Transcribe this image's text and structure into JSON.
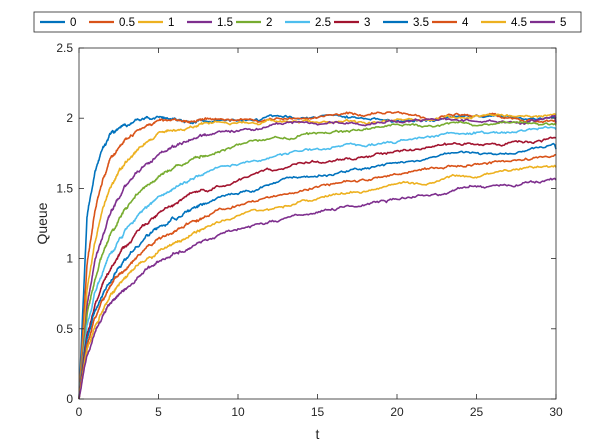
{
  "chart_data": {
    "type": "line",
    "title": "",
    "xlabel": "t",
    "ylabel": "Queue",
    "xlim": [
      0,
      30
    ],
    "ylim": [
      0,
      2.5
    ],
    "xticks": [
      "0",
      "5",
      "10",
      "15",
      "20",
      "25",
      "30"
    ],
    "yticks": [
      "0",
      "0.5",
      "1",
      "1.5",
      "2",
      "2.5"
    ],
    "grid": false,
    "legend_position": "top",
    "x": [
      0,
      0.5,
      1,
      1.5,
      2,
      2.5,
      3,
      4,
      5,
      6,
      7,
      8,
      10,
      12,
      14,
      16,
      18,
      20,
      22,
      24,
      26,
      28,
      30
    ],
    "series": [
      {
        "name": "0",
        "color": "#0072BD",
        "values": [
          0,
          1.3,
          1.62,
          1.8,
          1.88,
          1.93,
          1.96,
          1.98,
          1.99,
          2.0,
          1.98,
          2.0,
          1.99,
          2.0,
          2.0,
          2.01,
          2.0,
          1.98,
          2.0,
          2.01,
          2.02,
          1.99,
          2.0
        ]
      },
      {
        "name": "0.5",
        "color": "#D95319",
        "values": [
          0,
          0.95,
          1.35,
          1.58,
          1.72,
          1.8,
          1.86,
          1.93,
          1.97,
          1.98,
          1.99,
          2.0,
          1.98,
          1.97,
          1.99,
          2.01,
          2.03,
          2.04,
          1.99,
          2.01,
          2.02,
          1.96,
          1.96
        ]
      },
      {
        "name": "1",
        "color": "#EDB120",
        "values": [
          0,
          0.78,
          1.12,
          1.36,
          1.52,
          1.62,
          1.7,
          1.81,
          1.88,
          1.92,
          1.94,
          1.96,
          1.97,
          1.99,
          1.98,
          1.98,
          1.97,
          1.99,
          1.98,
          2.0,
          2.03,
          2.02,
          2.02
        ]
      },
      {
        "name": "1.5",
        "color": "#7E2F8E",
        "values": [
          0,
          0.68,
          0.98,
          1.18,
          1.33,
          1.44,
          1.53,
          1.65,
          1.74,
          1.8,
          1.85,
          1.88,
          1.92,
          1.94,
          1.96,
          1.97,
          1.97,
          1.98,
          1.99,
          1.97,
          1.98,
          1.96,
          1.97
        ]
      },
      {
        "name": "2",
        "color": "#77AC30",
        "values": [
          0,
          0.6,
          0.86,
          1.04,
          1.17,
          1.28,
          1.37,
          1.49,
          1.58,
          1.65,
          1.7,
          1.74,
          1.8,
          1.84,
          1.87,
          1.9,
          1.92,
          1.94,
          1.95,
          1.96,
          1.96,
          1.95,
          1.95
        ]
      },
      {
        "name": "2.5",
        "color": "#4DBEEE",
        "values": [
          0,
          0.52,
          0.76,
          0.92,
          1.04,
          1.14,
          1.22,
          1.34,
          1.43,
          1.5,
          1.56,
          1.61,
          1.67,
          1.72,
          1.76,
          1.79,
          1.82,
          1.84,
          1.86,
          1.88,
          1.9,
          1.91,
          1.92
        ]
      },
      {
        "name": "3",
        "color": "#A2142F",
        "values": [
          0,
          0.46,
          0.68,
          0.83,
          0.94,
          1.03,
          1.11,
          1.23,
          1.32,
          1.39,
          1.45,
          1.5,
          1.57,
          1.62,
          1.66,
          1.7,
          1.73,
          1.76,
          1.79,
          1.81,
          1.83,
          1.84,
          1.86
        ]
      },
      {
        "name": "3.5",
        "color": "#0072BD",
        "values": [
          0,
          0.42,
          0.62,
          0.76,
          0.86,
          0.95,
          1.02,
          1.13,
          1.22,
          1.29,
          1.35,
          1.4,
          1.48,
          1.53,
          1.58,
          1.62,
          1.65,
          1.68,
          1.71,
          1.74,
          1.76,
          1.77,
          1.78
        ]
      },
      {
        "name": "4",
        "color": "#D95319",
        "values": [
          0,
          0.38,
          0.57,
          0.7,
          0.8,
          0.88,
          0.95,
          1.05,
          1.13,
          1.2,
          1.26,
          1.31,
          1.38,
          1.44,
          1.49,
          1.53,
          1.57,
          1.6,
          1.63,
          1.66,
          1.68,
          1.71,
          1.74
        ]
      },
      {
        "name": "4.5",
        "color": "#EDB120",
        "values": [
          0,
          0.35,
          0.52,
          0.64,
          0.74,
          0.81,
          0.87,
          0.97,
          1.05,
          1.11,
          1.17,
          1.22,
          1.29,
          1.35,
          1.4,
          1.44,
          1.48,
          1.51,
          1.54,
          1.57,
          1.6,
          1.63,
          1.65
        ]
      },
      {
        "name": "5",
        "color": "#7E2F8E",
        "values": [
          0,
          0.32,
          0.48,
          0.59,
          0.68,
          0.75,
          0.81,
          0.9,
          0.98,
          1.04,
          1.09,
          1.14,
          1.21,
          1.26,
          1.31,
          1.35,
          1.39,
          1.43,
          1.46,
          1.49,
          1.52,
          1.54,
          1.56
        ]
      }
    ]
  }
}
